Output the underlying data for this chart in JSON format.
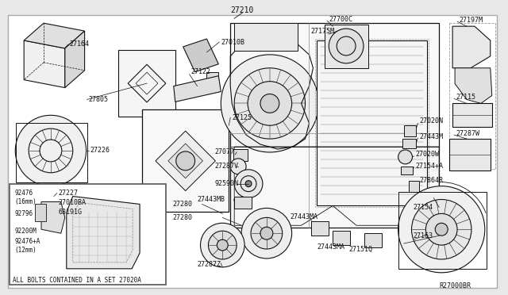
{
  "bg_color": "#f0f0f0",
  "diagram_color": "#222222",
  "ref_code": "R27000BR",
  "footnote": "ALL BOLTS CONTAINED IN A SET 27020A",
  "title": "27210",
  "border_lw": 0.8
}
